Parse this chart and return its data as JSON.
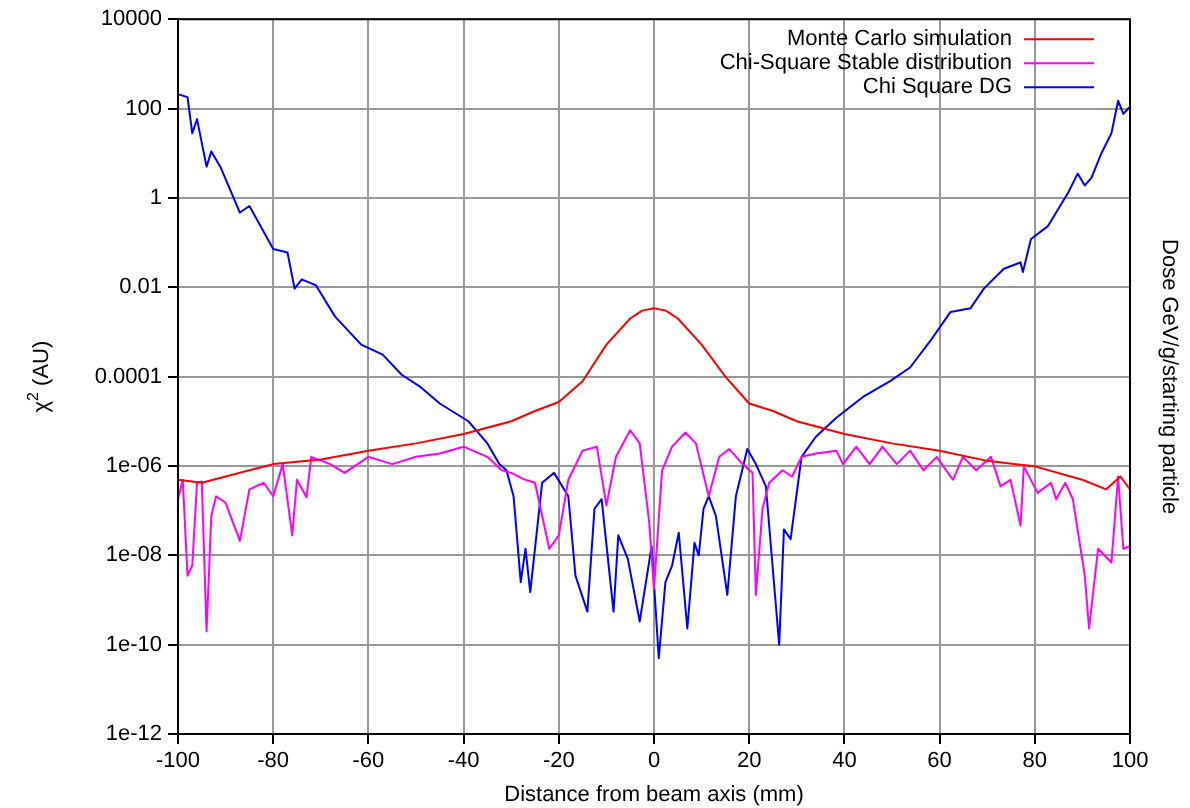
{
  "chart_data": {
    "type": "line",
    "xlabel": "Distance from beam axis (mm)",
    "ylabel": "χ$^{2}$ (AU)",
    "y2label": "Dose GeV/g/starting particle",
    "xlim": [
      -100,
      100
    ],
    "xticks": [
      -100,
      -80,
      -60,
      -40,
      -20,
      0,
      20,
      40,
      60,
      80,
      100
    ],
    "ylim": [
      1e-12,
      10000
    ],
    "yticks": [
      {
        "value": 1e-12,
        "label": "1e-12"
      },
      {
        "value": 1e-10,
        "label": "1e-10"
      },
      {
        "value": 1e-08,
        "label": "1e-08"
      },
      {
        "value": 1e-06,
        "label": "1e-06"
      },
      {
        "value": 0.0001,
        "label": "0.0001"
      },
      0.01,
      1,
      100,
      10000
    ],
    "log": true,
    "grid": true,
    "legend": "top right",
    "marker": "none",
    "line_style": "solid",
    "series": [
      {
        "name": "Monte Carlo simulation",
        "color": "#ff0000",
        "x": [
          -100,
          -95,
          -90,
          -80,
          -70,
          -60,
          -50,
          -40,
          -30,
          -25,
          -20,
          -15,
          -10,
          -5,
          -2.5,
          0,
          2.5,
          5,
          10,
          15,
          20,
          25,
          30,
          40,
          50,
          60,
          70,
          80,
          90,
          95,
          98,
          100
        ],
        "values": [
          4.9e-07,
          4.2e-07,
          5.8e-07,
          1.1e-06,
          1.4e-06,
          2.2e-06,
          3.2e-06,
          5.2e-06,
          1e-05,
          1.7e-05,
          2.7e-05,
          7.9e-05,
          0.00052,
          0.002,
          0.003,
          0.0034,
          0.003,
          0.002,
          0.00052,
          0.0001,
          2.5e-05,
          1.7e-05,
          1e-05,
          5.2e-06,
          3.2e-06,
          2.2e-06,
          1.3e-06,
          9.8e-07,
          4.9e-07,
          3e-07,
          5.8e-07,
          3e-07
        ]
      },
      {
        "name": "Chi-Square Stable distribution",
        "color": "#ff00ff",
        "x": [
          -100,
          -99,
          -98,
          -97,
          -96,
          -95,
          -94,
          -93,
          -92,
          -90,
          -87,
          -85,
          -82,
          -80,
          -78,
          -76,
          -75,
          -73,
          -72,
          -68,
          -65,
          -60,
          -55,
          -50,
          -45,
          -40,
          -35,
          -32,
          -30,
          -27,
          -25,
          -22,
          -20,
          -18,
          -15,
          -12,
          -10,
          -8,
          -5,
          -3,
          -1,
          0,
          1.7,
          3.8,
          6.6,
          8.8,
          11.5,
          13.7,
          15.8,
          18.6,
          20.7,
          21.4,
          22.8,
          24.2,
          27,
          29,
          31,
          34,
          38.3,
          39.7,
          42.5,
          45.3,
          48,
          51,
          53.8,
          56.6,
          59.4,
          62.8,
          64.9,
          67.7,
          70.8,
          72.8,
          74.9,
          77,
          77.7,
          80.6,
          83.4,
          84.5,
          86.4,
          88,
          90.5,
          91.4,
          93.3,
          96.1,
          97.5,
          98.6,
          100
        ],
        "values": [
          1.8e-07,
          4.9e-07,
          3.5e-09,
          5.9e-09,
          4.2e-07,
          4.5e-07,
          2e-10,
          7.6e-08,
          2.1e-07,
          1.5e-07,
          2.1e-08,
          3e-07,
          4.2e-07,
          2.1e-07,
          1.1e-06,
          2.8e-08,
          4.9e-07,
          2e-07,
          1.6e-06,
          1.1e-06,
          7e-07,
          1.6e-06,
          1.1e-06,
          1.6e-06,
          1.9e-06,
          2.7e-06,
          1.6e-06,
          8e-07,
          7e-07,
          4.9e-07,
          4.2e-07,
          1.4e-08,
          2.8e-08,
          4.9e-07,
          2.2e-06,
          2.7e-06,
          1.3e-07,
          1.6e-06,
          6.3e-06,
          3.2e-06,
          5.4e-08,
          1.8e-09,
          8e-07,
          2.7e-06,
          5.6e-06,
          3.2e-06,
          2.1e-07,
          1.6e-06,
          2.4e-06,
          1.1e-06,
          7e-07,
          1.3e-09,
          1.1e-07,
          4.2e-07,
          8e-07,
          5.8e-07,
          1.6e-06,
          1.9e-06,
          2.2e-06,
          1.1e-06,
          2.7e-06,
          1.1e-06,
          2.7e-06,
          1.1e-06,
          2.2e-06,
          8e-07,
          1.6e-06,
          4.9e-07,
          1.6e-06,
          8e-07,
          1.6e-06,
          3.5e-07,
          4.9e-07,
          4.6e-08,
          9.8e-07,
          2.5e-07,
          4.2e-07,
          1.8e-07,
          4.2e-07,
          1.8e-07,
          3.5e-09,
          2.3e-10,
          1.4e-08,
          6.9e-09,
          5.8e-07,
          1.4e-08,
          1.6e-08
        ]
      },
      {
        "name": "Chi Square DG",
        "color": "#0000ff",
        "x": [
          -100,
          -98,
          -97,
          -96,
          -94,
          -93,
          -91,
          -87,
          -85,
          -80,
          -77,
          -75.5,
          -74,
          -71,
          -67,
          -61.5,
          -57,
          -53,
          -49,
          -45,
          -39,
          -35,
          -32.5,
          -31,
          -29.5,
          -28,
          -27,
          -26,
          -23.5,
          -21,
          -18,
          -16.5,
          -14,
          -12.5,
          -11,
          -8.5,
          -7.5,
          -5.5,
          -3,
          -0.5,
          1,
          2.4,
          3.8,
          5.2,
          7,
          8.5,
          9.4,
          10.4,
          11.5,
          13,
          15.4,
          17.2,
          19.6,
          21.4,
          23.5,
          26.3,
          27.3,
          28.7,
          31,
          34,
          38.3,
          43.9,
          49.6,
          53.8,
          58,
          62.3,
          66.5,
          69.3,
          73.5,
          77,
          77.5,
          79.2,
          82.7,
          87,
          89,
          90.5,
          91.9,
          94,
          96.1,
          97.5,
          98.6,
          100
        ],
        "values": [
          210,
          180,
          28,
          58,
          5,
          11,
          4.7,
          0.47,
          0.66,
          0.072,
          0.06,
          0.0093,
          0.015,
          0.011,
          0.0022,
          0.00052,
          0.00031,
          0.00011,
          5.8e-05,
          2.5e-05,
          1e-05,
          3.2e-06,
          1.1e-06,
          8e-07,
          2.1e-07,
          2.5e-09,
          1.4e-08,
          1.5e-09,
          4.2e-07,
          7e-07,
          2.1e-07,
          3.5e-09,
          5.5e-10,
          1.1e-07,
          1.8e-07,
          5.5e-10,
          2.8e-08,
          8.3e-09,
          3.3e-10,
          1.6e-08,
          5e-11,
          2.5e-09,
          5.9e-09,
          3.2e-08,
          2.3e-10,
          1.9e-08,
          1e-08,
          1.1e-07,
          2.1e-07,
          7.6e-08,
          1.3e-09,
          2.1e-07,
          2.4e-06,
          1.1e-06,
          3.5e-07,
          1e-10,
          3.8e-08,
          2.3e-08,
          1.6e-06,
          4.5e-06,
          1.2e-05,
          3.5e-05,
          7.9e-05,
          0.00016,
          0.00062,
          0.0028,
          0.0034,
          0.0093,
          0.026,
          0.036,
          0.022,
          0.12,
          0.23,
          1.3,
          3.5,
          1.9,
          2.8,
          10,
          28,
          150,
          76,
          110
        ]
      }
    ]
  }
}
